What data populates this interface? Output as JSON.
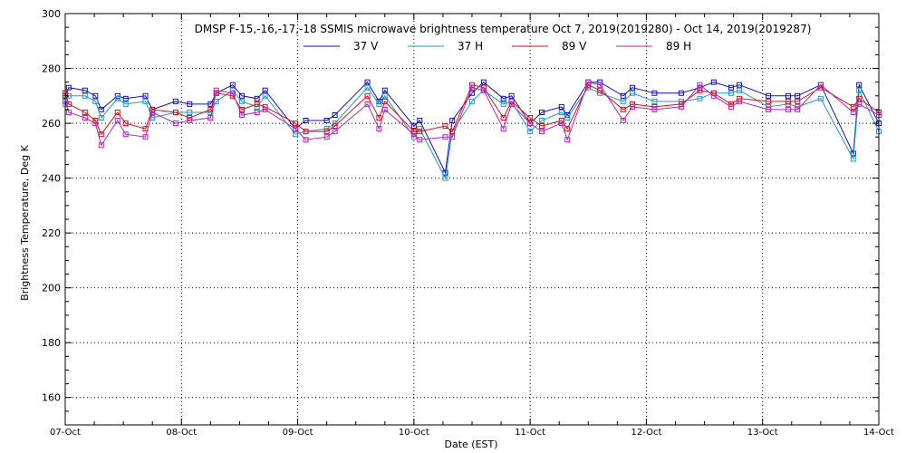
{
  "chart_data": {
    "type": "line",
    "title": "DMSP F-15,-16,-17,-18 SSMIS microwave brightness temperature Oct  7, 2019(2019280) - Oct 14, 2019(2019287)",
    "xlabel": "Date (EST)",
    "ylabel": "Brightness Temperature, Deg K",
    "x_unit": "days since 07-Oct",
    "xlim": [
      0,
      7
    ],
    "ylim": [
      150,
      300
    ],
    "yticks": [
      160,
      180,
      200,
      220,
      240,
      260,
      280,
      300
    ],
    "xtick_labels": [
      "07-Oct",
      "08-Oct",
      "09-Oct",
      "10-Oct",
      "11-Oct",
      "12-Oct",
      "13-Oct",
      "14-Oct"
    ],
    "grid": true,
    "legend_position": "top-center",
    "x": [
      0.0,
      0.03,
      0.17,
      0.26,
      0.31,
      0.45,
      0.52,
      0.69,
      0.75,
      0.95,
      1.07,
      1.25,
      1.3,
      1.44,
      1.52,
      1.65,
      1.72,
      1.98,
      2.07,
      2.25,
      2.32,
      2.6,
      2.7,
      2.75,
      3.0,
      3.05,
      3.27,
      3.33,
      3.5,
      3.6,
      3.77,
      3.84,
      4.0,
      4.1,
      4.27,
      4.32,
      4.5,
      4.6,
      4.8,
      4.88,
      5.07,
      5.3,
      5.46,
      5.58,
      5.73,
      5.8,
      6.05,
      6.22,
      6.3,
      6.5,
      6.78,
      6.83,
      7.0
    ],
    "series": [
      {
        "name": "37 V",
        "color": "#1010c8",
        "values": [
          270,
          273,
          272,
          270,
          265,
          270,
          269,
          270,
          265,
          268,
          267,
          267,
          271,
          274,
          270,
          269,
          272,
          258,
          261,
          261,
          263,
          275,
          268,
          272,
          259,
          261,
          242,
          261,
          271,
          275,
          269,
          270,
          260,
          264,
          266,
          263,
          275,
          275,
          270,
          273,
          271,
          271,
          273,
          275,
          273,
          274,
          270,
          270,
          270,
          274,
          249,
          274,
          260
        ]
      },
      {
        "name": "37 H",
        "color": "#1a9bd0",
        "values": [
          267,
          270,
          270,
          268,
          262,
          269,
          267,
          268,
          262,
          264,
          264,
          264,
          268,
          272,
          268,
          266,
          270,
          256,
          257,
          258,
          260,
          273,
          267,
          270,
          255,
          258,
          240,
          257,
          268,
          272,
          267,
          268,
          257,
          261,
          264,
          262,
          273,
          271,
          268,
          271,
          268,
          268,
          269,
          271,
          271,
          272,
          266,
          267,
          266,
          269,
          247,
          272,
          257
        ]
      },
      {
        "name": "89 V",
        "color": "#e01010",
        "values": [
          271,
          267,
          264,
          261,
          256,
          264,
          260,
          258,
          265,
          264,
          262,
          265,
          271,
          270,
          265,
          267,
          266,
          260,
          257,
          257,
          259,
          270,
          262,
          268,
          257,
          257,
          259,
          257,
          274,
          273,
          262,
          268,
          262,
          259,
          261,
          258,
          274,
          272,
          265,
          267,
          266,
          267,
          272,
          271,
          267,
          269,
          268,
          268,
          268,
          273,
          266,
          269,
          264
        ]
      },
      {
        "name": "89 H",
        "color": "#c020c0",
        "values": [
          268,
          264,
          262,
          260,
          252,
          261,
          256,
          255,
          264,
          260,
          261,
          262,
          272,
          271,
          263,
          264,
          265,
          258,
          254,
          255,
          257,
          267,
          258,
          265,
          256,
          254,
          255,
          255,
          273,
          272,
          258,
          267,
          260,
          257,
          260,
          254,
          275,
          274,
          261,
          266,
          265,
          266,
          274,
          270,
          266,
          268,
          265,
          265,
          265,
          274,
          264,
          267,
          263
        ]
      }
    ]
  }
}
